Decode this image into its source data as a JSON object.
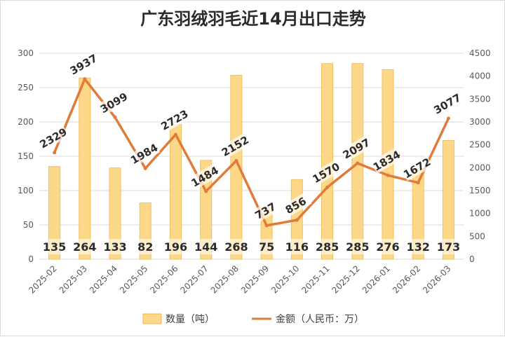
{
  "chart_data": {
    "type": "bar",
    "title": "广东羽绒羽毛近14月出口走势",
    "categories": [
      "2025-02",
      "2025-03",
      "2025-04",
      "2025-05",
      "2025-06",
      "2025-07",
      "2025-08",
      "2025-09",
      "2025-10",
      "2025-11",
      "2025-12",
      "2026-01",
      "2026-02",
      "2026-03"
    ],
    "series": [
      {
        "name": "数量（吨）",
        "type": "bar",
        "axis": "left",
        "color": "#fdd888",
        "values": [
          135,
          264,
          133,
          82,
          196,
          144,
          268,
          75,
          116,
          285,
          285,
          276,
          132,
          173
        ]
      },
      {
        "name": "金额（人民币：万）",
        "type": "line",
        "axis": "right",
        "color": "#e07b39",
        "values": [
          2329,
          3937,
          3099,
          1984,
          2723,
          1484,
          2152,
          737,
          856,
          1570,
          2097,
          1834,
          1672,
          3077
        ]
      }
    ],
    "left_axis": {
      "min": 0,
      "max": 300,
      "step": 50,
      "ticks": [
        "0",
        "50",
        "100",
        "150",
        "200",
        "250",
        "300"
      ]
    },
    "right_axis": {
      "min": 0,
      "max": 4500,
      "step": 500,
      "ticks": [
        "0",
        "500",
        "1000",
        "1500",
        "2000",
        "2500",
        "3000",
        "3500",
        "4000",
        "4500"
      ]
    },
    "grid": true,
    "legend_position": "bottom"
  }
}
